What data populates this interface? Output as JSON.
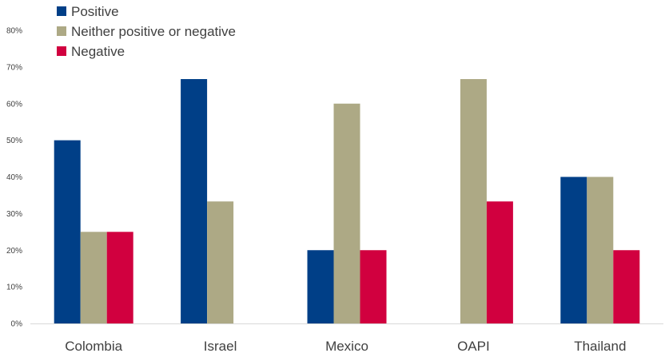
{
  "chart_data": {
    "type": "bar",
    "categories": [
      "Colombia",
      "Israel",
      "Mexico",
      "OAPI",
      "Thailand"
    ],
    "series": [
      {
        "name": "Positive",
        "color": "#003f87",
        "values": [
          50,
          66.7,
          20,
          0,
          40
        ]
      },
      {
        "name": "Neither positive or negative",
        "color": "#ada985",
        "values": [
          25,
          33.3,
          60,
          66.7,
          40
        ]
      },
      {
        "name": "Negative",
        "color": "#d1003f",
        "values": [
          25,
          0,
          20,
          33.3,
          20
        ]
      }
    ],
    "yticks": [
      "0%",
      "10%",
      "20%",
      "30%",
      "40%",
      "50%",
      "60%",
      "70%",
      "80%"
    ],
    "ylim": [
      0,
      80
    ],
    "legend_position": "top-left",
    "grid": false
  }
}
